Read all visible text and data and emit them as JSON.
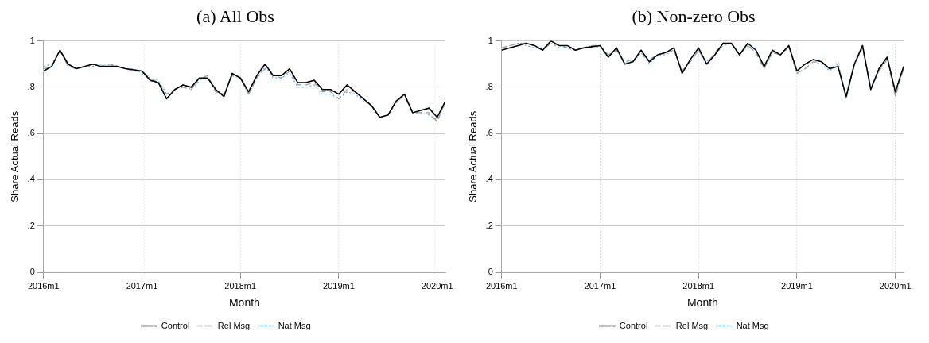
{
  "chart_data": [
    {
      "type": "line",
      "title": "(a) All Obs",
      "xlabel": "Month",
      "ylabel": "Share Actual Reads",
      "x": [
        "2016-01",
        "2016-02",
        "2016-03",
        "2016-04",
        "2016-05",
        "2016-06",
        "2016-07",
        "2016-08",
        "2016-09",
        "2016-10",
        "2016-11",
        "2016-12",
        "2017-01",
        "2017-02",
        "2017-03",
        "2017-04",
        "2017-05",
        "2017-06",
        "2017-07",
        "2017-08",
        "2017-09",
        "2017-10",
        "2017-11",
        "2017-12",
        "2018-01",
        "2018-02",
        "2018-03",
        "2018-04",
        "2018-05",
        "2018-06",
        "2018-07",
        "2018-08",
        "2018-09",
        "2018-10",
        "2018-11",
        "2018-12",
        "2019-01",
        "2019-02",
        "2019-03",
        "2019-04",
        "2019-05",
        "2019-06",
        "2019-07",
        "2019-08",
        "2019-09",
        "2019-10",
        "2019-11",
        "2019-12",
        "2020-01",
        "2020-02"
      ],
      "series": [
        {
          "name": "Control",
          "color": "#000000",
          "line_style": "solid",
          "values": [
            0.87,
            0.89,
            0.96,
            0.9,
            0.88,
            0.89,
            0.9,
            0.89,
            0.89,
            0.89,
            0.88,
            0.875,
            0.87,
            0.83,
            0.82,
            0.75,
            0.79,
            0.81,
            0.8,
            0.84,
            0.84,
            0.79,
            0.76,
            0.86,
            0.84,
            0.78,
            0.85,
            0.9,
            0.85,
            0.85,
            0.88,
            0.82,
            0.82,
            0.83,
            0.79,
            0.79,
            0.77,
            0.81,
            0.78,
            0.75,
            0.72,
            0.67,
            0.68,
            0.74,
            0.77,
            0.69,
            0.7,
            0.71,
            0.67,
            0.74
          ]
        },
        {
          "name": "Rel Msg",
          "color": "#a0a0a0",
          "line_style": "dashed",
          "values": [
            0.88,
            0.89,
            0.96,
            0.89,
            0.88,
            0.89,
            0.9,
            0.89,
            0.9,
            0.89,
            0.88,
            0.87,
            0.87,
            0.84,
            0.82,
            0.77,
            0.79,
            0.8,
            0.79,
            0.84,
            0.85,
            0.78,
            0.77,
            0.85,
            0.84,
            0.77,
            0.84,
            0.88,
            0.85,
            0.84,
            0.87,
            0.81,
            0.81,
            0.82,
            0.78,
            0.78,
            0.75,
            0.79,
            0.78,
            0.75,
            0.72,
            0.67,
            0.68,
            0.74,
            0.76,
            0.69,
            0.69,
            0.69,
            0.65,
            0.74
          ]
        },
        {
          "name": "Nat Msg",
          "color": "#5bb5e8",
          "line_style": "dotted",
          "values": [
            0.89,
            0.9,
            0.96,
            0.89,
            0.88,
            0.89,
            0.89,
            0.9,
            0.9,
            0.89,
            0.88,
            0.88,
            0.86,
            0.84,
            0.83,
            0.77,
            0.79,
            0.81,
            0.79,
            0.83,
            0.85,
            0.78,
            0.77,
            0.85,
            0.84,
            0.77,
            0.84,
            0.89,
            0.84,
            0.84,
            0.86,
            0.8,
            0.8,
            0.81,
            0.77,
            0.77,
            0.75,
            0.78,
            0.77,
            0.74,
            0.72,
            0.67,
            0.68,
            0.73,
            0.77,
            0.69,
            0.69,
            0.68,
            0.66,
            0.73
          ]
        }
      ],
      "xlim": [
        "2016-01",
        "2020-02"
      ],
      "xticks": [
        {
          "value": "2016-01",
          "label": "2016m1"
        },
        {
          "value": "2017-01",
          "label": "2017m1"
        },
        {
          "value": "2018-01",
          "label": "2018m1"
        },
        {
          "value": "2019-01",
          "label": "2019m1"
        },
        {
          "value": "2020-01",
          "label": "2020m1"
        }
      ],
      "ylim": [
        0,
        1
      ],
      "yticks": [
        {
          "value": 0,
          "label": "0"
        },
        {
          "value": 0.2,
          "label": ".2"
        },
        {
          "value": 0.4,
          "label": ".4"
        },
        {
          "value": 0.6,
          "label": ".6"
        },
        {
          "value": 0.8,
          "label": ".8"
        },
        {
          "value": 1,
          "label": "1"
        }
      ],
      "grid": true,
      "legend": "bottom"
    },
    {
      "type": "line",
      "title": "(b) Non-zero Obs",
      "xlabel": "Month",
      "ylabel": "Share Actual Reads",
      "x": [
        "2016-01",
        "2016-02",
        "2016-03",
        "2016-04",
        "2016-05",
        "2016-06",
        "2016-07",
        "2016-08",
        "2016-09",
        "2016-10",
        "2016-11",
        "2016-12",
        "2017-01",
        "2017-02",
        "2017-03",
        "2017-04",
        "2017-05",
        "2017-06",
        "2017-07",
        "2017-08",
        "2017-09",
        "2017-10",
        "2017-11",
        "2017-12",
        "2018-01",
        "2018-02",
        "2018-03",
        "2018-04",
        "2018-05",
        "2018-06",
        "2018-07",
        "2018-08",
        "2018-09",
        "2018-10",
        "2018-11",
        "2018-12",
        "2019-01",
        "2019-02",
        "2019-03",
        "2019-04",
        "2019-05",
        "2019-06",
        "2019-07",
        "2019-08",
        "2019-09",
        "2019-10",
        "2019-11",
        "2019-12",
        "2020-01",
        "2020-02"
      ],
      "series": [
        {
          "name": "Control",
          "color": "#000000",
          "line_style": "solid",
          "values": [
            0.96,
            0.97,
            0.98,
            0.99,
            0.98,
            0.96,
            1.0,
            0.98,
            0.98,
            0.96,
            0.97,
            0.975,
            0.98,
            0.93,
            0.97,
            0.9,
            0.91,
            0.96,
            0.91,
            0.94,
            0.95,
            0.97,
            0.86,
            0.92,
            0.97,
            0.9,
            0.94,
            0.99,
            0.99,
            0.94,
            0.99,
            0.96,
            0.89,
            0.96,
            0.94,
            0.98,
            0.87,
            0.9,
            0.92,
            0.91,
            0.88,
            0.89,
            0.76,
            0.9,
            0.98,
            0.79,
            0.88,
            0.93,
            0.78,
            0.89
          ]
        },
        {
          "name": "Rel Msg",
          "color": "#a0a0a0",
          "line_style": "dashed",
          "values": [
            0.97,
            0.98,
            0.99,
            0.99,
            0.98,
            0.96,
            0.99,
            0.98,
            0.97,
            0.96,
            0.97,
            0.98,
            0.98,
            0.94,
            0.96,
            0.91,
            0.92,
            0.95,
            0.92,
            0.94,
            0.95,
            0.96,
            0.87,
            0.91,
            0.96,
            0.9,
            0.95,
            0.99,
            0.99,
            0.94,
            0.98,
            0.95,
            0.88,
            0.95,
            0.94,
            0.98,
            0.86,
            0.88,
            0.91,
            0.91,
            0.88,
            0.9,
            0.75,
            0.9,
            0.97,
            0.79,
            0.87,
            0.92,
            0.76,
            0.88
          ]
        },
        {
          "name": "Nat Msg",
          "color": "#5bb5e8",
          "line_style": "dotted",
          "values": [
            0.97,
            0.98,
            0.99,
            0.98,
            0.97,
            0.97,
            0.99,
            0.97,
            0.97,
            0.96,
            0.97,
            0.98,
            0.97,
            0.94,
            0.96,
            0.91,
            0.91,
            0.95,
            0.9,
            0.94,
            0.94,
            0.96,
            0.87,
            0.91,
            0.96,
            0.91,
            0.94,
            0.98,
            0.99,
            0.94,
            0.98,
            0.95,
            0.88,
            0.95,
            0.94,
            0.97,
            0.86,
            0.88,
            0.91,
            0.9,
            0.87,
            0.91,
            0.75,
            0.9,
            0.97,
            0.8,
            0.87,
            0.93,
            0.77,
            0.88
          ]
        }
      ],
      "xlim": [
        "2016-01",
        "2020-02"
      ],
      "xticks": [
        {
          "value": "2016-01",
          "label": "2016m1"
        },
        {
          "value": "2017-01",
          "label": "2017m1"
        },
        {
          "value": "2018-01",
          "label": "2018m1"
        },
        {
          "value": "2019-01",
          "label": "2019m1"
        },
        {
          "value": "2020-01",
          "label": "2020m1"
        }
      ],
      "ylim": [
        0,
        1
      ],
      "yticks": [
        {
          "value": 0,
          "label": "0"
        },
        {
          "value": 0.2,
          "label": ".2"
        },
        {
          "value": 0.4,
          "label": ".4"
        },
        {
          "value": 0.6,
          "label": ".6"
        },
        {
          "value": 0.8,
          "label": ".8"
        },
        {
          "value": 1,
          "label": "1"
        }
      ],
      "grid": true,
      "legend": "bottom"
    }
  ]
}
